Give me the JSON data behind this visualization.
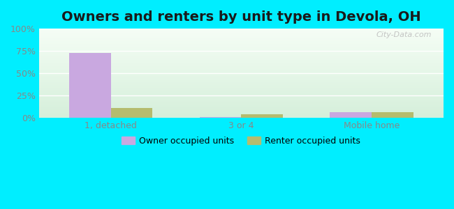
{
  "title": "Owners and renters by unit type in Devola, OH",
  "categories": [
    "1, detached",
    "3 or 4",
    "Mobile home"
  ],
  "owner_values": [
    73,
    1,
    6
  ],
  "renter_values": [
    11,
    4,
    6
  ],
  "owner_color": "#c9a8e0",
  "renter_color": "#b5bc6e",
  "yticks": [
    0,
    25,
    50,
    75,
    100
  ],
  "ytick_labels": [
    "0%",
    "25%",
    "50%",
    "75%",
    "100%"
  ],
  "ylim": [
    0,
    100
  ],
  "bg_top": "#f5fdf5",
  "bg_bottom": "#d4efda",
  "outer_background": "#00eeff",
  "title_fontsize": 14,
  "watermark": "City-Data.com",
  "bar_width": 0.32,
  "legend_owner": "Owner occupied units",
  "legend_renter": "Renter occupied units",
  "grid_color": "#ffffff",
  "tick_color": "#888888",
  "title_color": "#1a1a1a"
}
